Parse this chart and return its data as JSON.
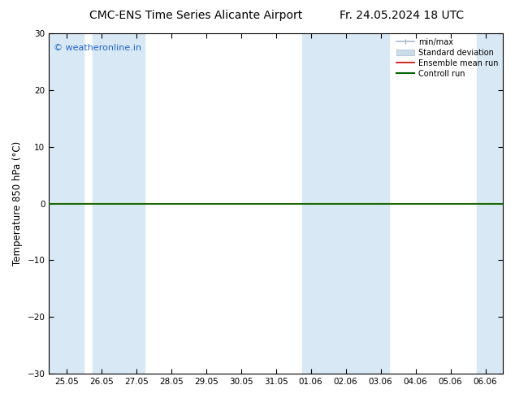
{
  "title_left": "CMC-ENS Time Series Alicante Airport",
  "title_right": "Fr. 24.05.2024 18 UTC",
  "ylabel": "Temperature 850 hPa (°C)",
  "ylim": [
    -30,
    30
  ],
  "yticks": [
    -30,
    -20,
    -10,
    0,
    10,
    20,
    30
  ],
  "xlabels": [
    "25.05",
    "26.05",
    "27.05",
    "28.05",
    "29.05",
    "30.05",
    "31.05",
    "01.06",
    "02.06",
    "03.06",
    "04.06",
    "05.06",
    "06.06"
  ],
  "watermark": "© weatheronline.in",
  "watermark_color": "#2266cc",
  "background_color": "#ffffff",
  "plot_bg_color": "#ffffff",
  "shade_color": "#d8e8f5",
  "zero_line_color": "#1a6600",
  "zero_line_lw": 1.5,
  "legend_minmax_color": "#aabbcc",
  "legend_std_color": "#c8dcea",
  "legend_ens_color": "#cc0000",
  "legend_ctrl_color": "#006600",
  "title_fontsize": 10,
  "tick_fontsize": 7.5,
  "ylabel_fontsize": 8.5,
  "watermark_fontsize": 8
}
